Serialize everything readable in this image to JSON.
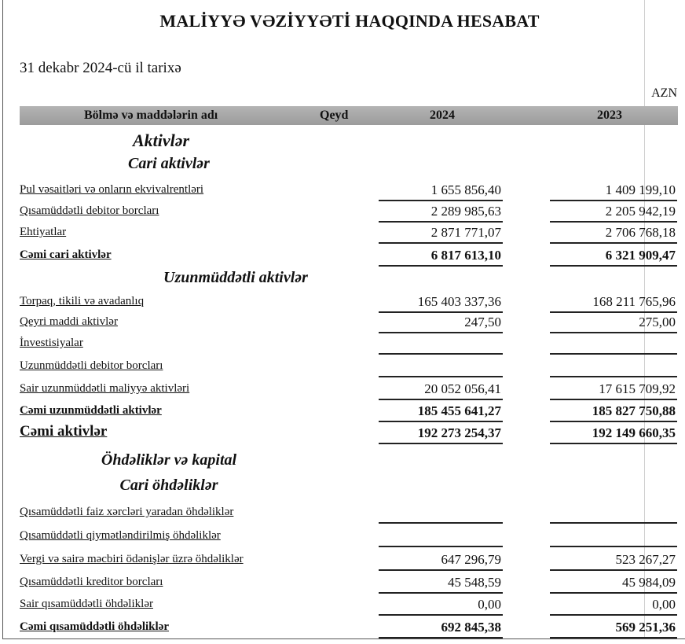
{
  "title": "MALİYYƏ VƏZİYYƏTİ HAQQINDA HESABAT",
  "date": "31 dekabr 2024-cü il tarixə",
  "currency": "AZN",
  "header": {
    "name": "Bölmə və maddələrin adı",
    "note": "Qeyd",
    "y2024": "2024",
    "y2023": "2023"
  },
  "rows": [
    {
      "type": "heading",
      "size": "lg",
      "label": "Aktivlər"
    },
    {
      "type": "heading",
      "label": "Cari aktivlər"
    },
    {
      "type": "item",
      "label": "Pul vəsaitləri və onların ekvivalrentləri",
      "v2024": "1 655 856,40",
      "v2023": "1 409 199,10"
    },
    {
      "type": "item",
      "label": "Qısamüddətli debitor borcları",
      "v2024": "2 289 985,63",
      "v2023": "2 205 942,19"
    },
    {
      "type": "item",
      "label": "Ehtiyatlar",
      "v2024": "2 871 771,07",
      "v2023": "2 706 768,18"
    },
    {
      "type": "total",
      "label": "Cəmi cari aktivlər",
      "v2024": "6 817 613,10",
      "v2023": "6 321 909,47"
    },
    {
      "type": "heading",
      "label": "Uzunmüddətli aktivlər"
    },
    {
      "type": "item",
      "label": "Torpaq, tikili və avadanlıq",
      "v2024": "165 403 337,36",
      "v2023": "168 211 765,96"
    },
    {
      "type": "item",
      "label": "Qeyri maddi aktivlər",
      "v2024": "247,50",
      "v2023": "275,00"
    },
    {
      "type": "item",
      "label": "İnvestisiyalar",
      "v2024": "",
      "v2023": ""
    },
    {
      "type": "item",
      "label": "Uzunmüddətli debitor borcları",
      "v2024": "",
      "v2023": ""
    },
    {
      "type": "item",
      "label": "Sair uzunmüddətli maliyyə aktivləri",
      "v2024": "20 052 056,41",
      "v2023": "17 615 709,92"
    },
    {
      "type": "total",
      "label": "Cəmi uzunmüddətli aktivlər",
      "v2024": "185 455 641,27",
      "v2023": "185 827 750,88"
    },
    {
      "type": "grand",
      "label": "Cəmi aktivlər",
      "v2024": "192 273 254,37",
      "v2023": "192 149 660,35"
    },
    {
      "type": "heading",
      "label": "Öhdəliklər və kapital"
    },
    {
      "type": "heading",
      "label": "Cari öhdəliklər"
    },
    {
      "type": "item",
      "label": "Qısamüddətli faiz xərcləri yaradan öhdəliklər",
      "v2024": "",
      "v2023": ""
    },
    {
      "type": "item",
      "label": "Qısamüddətli qiymətləndirilmiş öhdəliklər",
      "v2024": "",
      "v2023": ""
    },
    {
      "type": "item",
      "label": "Vergi və sairə məcbiri ödənişlər üzrə öhdəliklər",
      "v2024": "647 296,79",
      "v2023": "523 267,27"
    },
    {
      "type": "item",
      "label": "Qısamüddətli kreditor borcları",
      "v2024": "45 548,59",
      "v2023": "45 984,09"
    },
    {
      "type": "item",
      "label": "Sair qısamüddətli öhdəliklər",
      "v2024": "0,00",
      "v2023": "0,00"
    },
    {
      "type": "total",
      "label": "Cəmi qısamüddətli öhdəliklər",
      "v2024": "692 845,38",
      "v2023": "569 251,36"
    }
  ]
}
